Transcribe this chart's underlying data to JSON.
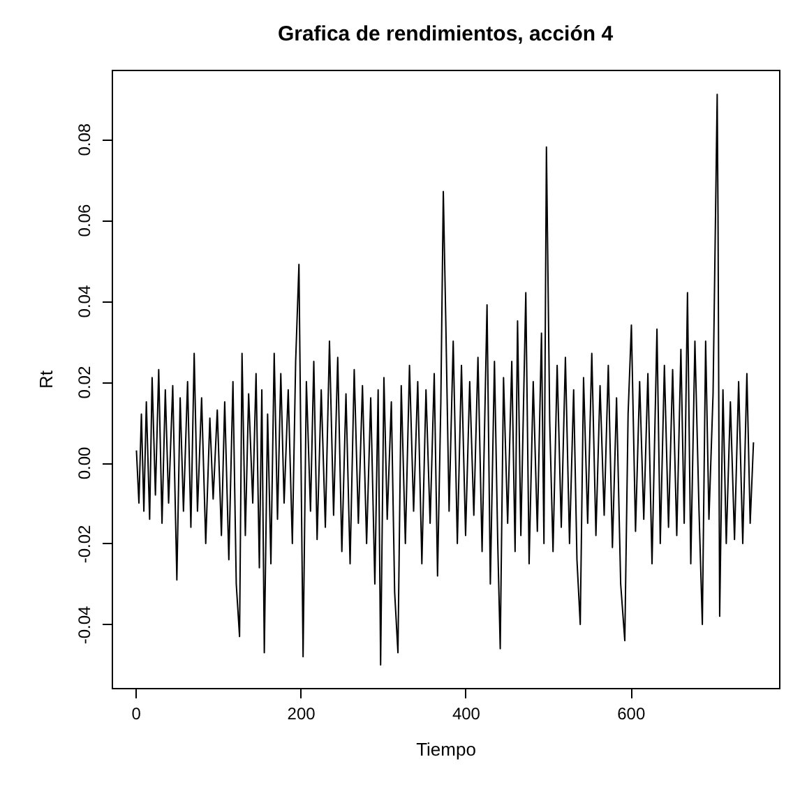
{
  "chart_data": {
    "type": "line",
    "title": "Grafica de rendimientos, acción 4",
    "xlabel": "Tiempo",
    "ylabel": "Rt",
    "xlim": [
      -29,
      780
    ],
    "xticks": [
      0,
      200,
      400,
      600
    ],
    "ylim": [
      -0.0557,
      0.0971
    ],
    "yticks": [
      {
        "value": -0.04,
        "label": "-0.04"
      },
      {
        "value": -0.02,
        "label": "-0.02"
      },
      {
        "value": 0,
        "label": "0.00"
      },
      {
        "value": 0.02,
        "label": "0.02"
      },
      {
        "value": 0.04,
        "label": "0.04"
      },
      {
        "value": 0.06,
        "label": "0.06"
      },
      {
        "value": 0.08,
        "label": "0.08"
      }
    ],
    "grid": false,
    "marker": "none",
    "line_style": "solid",
    "series": [
      {
        "color": "#000000",
        "x": [
          1,
          4,
          7,
          10,
          13,
          17,
          20,
          24,
          28,
          32,
          36,
          40,
          45,
          50,
          54,
          58,
          63,
          67,
          71,
          75,
          80,
          85,
          90,
          94,
          99,
          104,
          108,
          113,
          118,
          122,
          126,
          129,
          133,
          137,
          142,
          146,
          150,
          153,
          156,
          160,
          164,
          168,
          172,
          176,
          180,
          185,
          190,
          194,
          198,
          203,
          207,
          212,
          216,
          220,
          225,
          230,
          235,
          240,
          245,
          250,
          255,
          260,
          265,
          270,
          275,
          280,
          285,
          290,
          294,
          297,
          301,
          305,
          310,
          314,
          318,
          322,
          327,
          332,
          337,
          342,
          347,
          352,
          357,
          362,
          366,
          370,
          373,
          376,
          380,
          385,
          390,
          395,
          400,
          405,
          410,
          415,
          420,
          426,
          430,
          435,
          439,
          442,
          446,
          451,
          456,
          460,
          463,
          467,
          473,
          477,
          482,
          487,
          492,
          495,
          498,
          502,
          506,
          511,
          516,
          521,
          526,
          531,
          535,
          539,
          543,
          548,
          553,
          558,
          563,
          568,
          573,
          578,
          583,
          588,
          593,
          597,
          601,
          606,
          611,
          616,
          621,
          626,
          632,
          636,
          641,
          646,
          651,
          656,
          661,
          665,
          669,
          673,
          678,
          683,
          687,
          691,
          695,
          700,
          705,
          706,
          708,
          712,
          716,
          721,
          726,
          731,
          736,
          741,
          745,
          749
        ],
        "values": [
          0.003,
          -0.01,
          0.012,
          -0.012,
          0.015,
          -0.014,
          0.021,
          -0.008,
          0.023,
          -0.015,
          0.018,
          -0.01,
          0.019,
          -0.029,
          0.016,
          -0.012,
          0.02,
          -0.016,
          0.027,
          -0.012,
          0.016,
          -0.02,
          0.011,
          -0.009,
          0.013,
          -0.018,
          0.015,
          -0.024,
          0.02,
          -0.03,
          -0.043,
          0.027,
          -0.018,
          0.017,
          -0.01,
          0.022,
          -0.026,
          0.018,
          -0.047,
          0.012,
          -0.025,
          0.027,
          -0.014,
          0.022,
          -0.01,
          0.018,
          -0.02,
          0.025,
          0.049,
          -0.048,
          0.02,
          -0.012,
          0.025,
          -0.019,
          0.018,
          -0.016,
          0.03,
          -0.013,
          0.026,
          -0.022,
          0.017,
          -0.025,
          0.023,
          -0.015,
          0.019,
          -0.02,
          0.016,
          -0.03,
          0.018,
          -0.05,
          0.021,
          -0.014,
          0.015,
          -0.032,
          -0.047,
          0.019,
          -0.02,
          0.024,
          -0.012,
          0.02,
          -0.025,
          0.018,
          -0.015,
          0.022,
          -0.028,
          0.015,
          0.067,
          0.035,
          -0.012,
          0.03,
          -0.02,
          0.024,
          -0.018,
          0.02,
          -0.013,
          0.026,
          -0.022,
          0.039,
          -0.03,
          0.025,
          -0.02,
          -0.046,
          0.021,
          -0.015,
          0.025,
          -0.022,
          0.035,
          -0.018,
          0.042,
          -0.025,
          0.02,
          -0.017,
          0.032,
          -0.02,
          0.078,
          0.01,
          -0.022,
          0.024,
          -0.016,
          0.026,
          -0.02,
          0.018,
          -0.024,
          -0.04,
          0.021,
          -0.015,
          0.027,
          -0.018,
          0.019,
          -0.013,
          0.024,
          -0.021,
          0.016,
          -0.03,
          -0.044,
          0.012,
          0.034,
          -0.017,
          0.02,
          -0.014,
          0.022,
          -0.025,
          0.033,
          -0.02,
          0.024,
          -0.016,
          0.023,
          -0.018,
          0.028,
          -0.015,
          0.042,
          -0.025,
          0.03,
          -0.012,
          -0.04,
          0.03,
          -0.014,
          0.017,
          0.091,
          0.061,
          -0.038,
          0.018,
          -0.02,
          0.015,
          -0.019,
          0.02,
          -0.02,
          0.022,
          -0.015,
          0.005
        ]
      }
    ]
  }
}
